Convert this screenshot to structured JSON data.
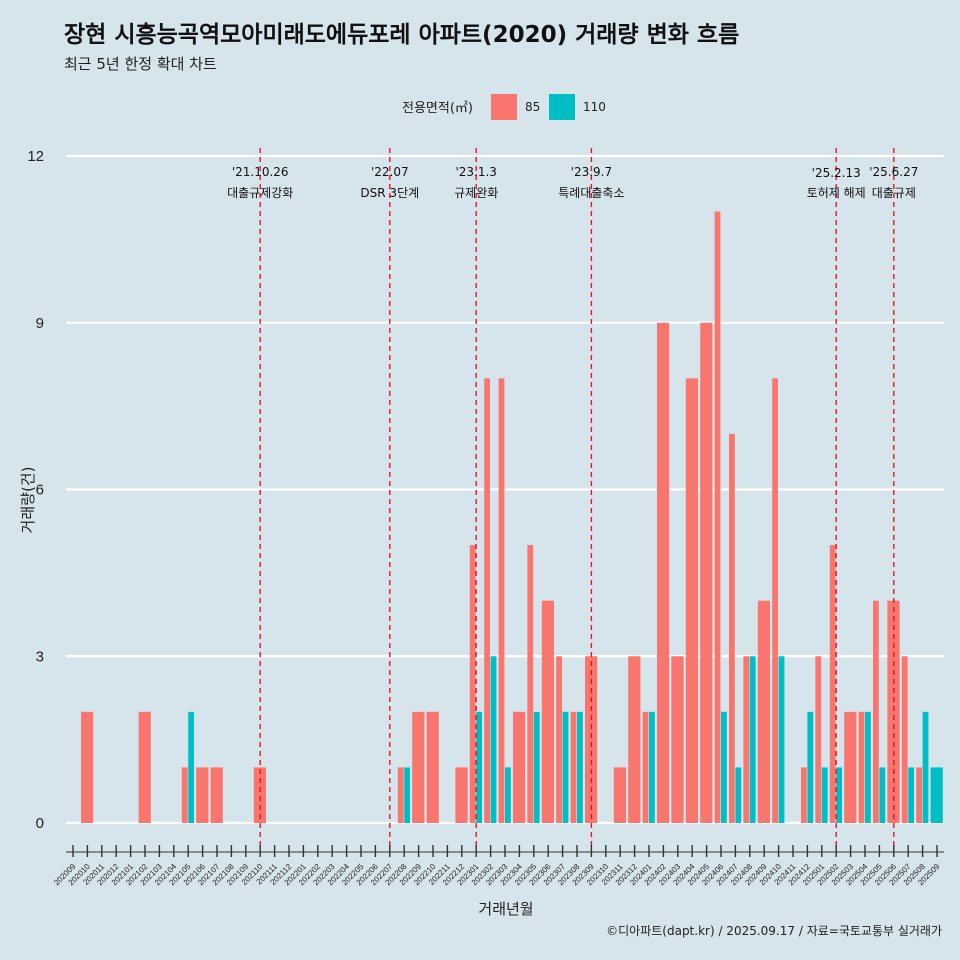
{
  "chart_data": {
    "type": "bar",
    "title": "장현 시흥능곡역모아미래도에듀포레 아파트(2020) 거래량 변화 흐름",
    "subtitle": "최근 5년 한정 확대 차트",
    "xlabel": "거래년월",
    "ylabel": "거래량(건)",
    "ylim": [
      0,
      12
    ],
    "yticks": [
      0,
      3,
      6,
      9,
      12
    ],
    "legend_title": "전용면적(㎡)",
    "legend_position": "top",
    "caption": "©디아파트(dapt.kr) / 2025.09.17 / 자료=국토교통부 실거래가",
    "categories": [
      "202009",
      "202010",
      "202011",
      "202012",
      "202101",
      "202102",
      "202103",
      "202104",
      "202105",
      "202106",
      "202107",
      "202108",
      "202109",
      "202110",
      "202111",
      "202112",
      "202201",
      "202202",
      "202203",
      "202204",
      "202205",
      "202206",
      "202207",
      "202208",
      "202209",
      "202210",
      "202211",
      "202212",
      "202301",
      "202302",
      "202303",
      "202304",
      "202305",
      "202306",
      "202307",
      "202308",
      "202309",
      "202310",
      "202311",
      "202312",
      "202401",
      "202402",
      "202403",
      "202404",
      "202405",
      "202406",
      "202407",
      "202408",
      "202409",
      "202410",
      "202411",
      "202412",
      "202501",
      "202502",
      "202503",
      "202504",
      "202505",
      "202506",
      "202507",
      "202508",
      "202509"
    ],
    "series": [
      {
        "name": "85",
        "color": "#f8766d",
        "values": [
          0,
          2,
          0,
          0,
          0,
          2,
          0,
          0,
          1,
          1,
          1,
          0,
          0,
          1,
          0,
          0,
          0,
          0,
          0,
          0,
          0,
          0,
          0,
          1,
          2,
          2,
          0,
          1,
          5,
          8,
          8,
          2,
          5,
          4,
          3,
          2,
          3,
          0,
          1,
          3,
          2,
          9,
          3,
          8,
          9,
          11,
          7,
          3,
          4,
          8,
          0,
          1,
          3,
          5,
          2,
          2,
          4,
          4,
          3,
          1,
          0
        ]
      },
      {
        "name": "110",
        "color": "#00bfc4",
        "values": [
          0,
          0,
          0,
          0,
          0,
          0,
          0,
          0,
          2,
          0,
          0,
          0,
          0,
          0,
          0,
          0,
          0,
          0,
          0,
          0,
          0,
          0,
          0,
          1,
          0,
          0,
          0,
          0,
          2,
          3,
          1,
          0,
          2,
          0,
          2,
          2,
          0,
          0,
          0,
          0,
          2,
          0,
          0,
          0,
          0,
          2,
          1,
          3,
          0,
          3,
          0,
          2,
          1,
          1,
          0,
          2,
          1,
          0,
          1,
          2,
          1
        ]
      }
    ],
    "events": [
      {
        "date": "'21.10.26",
        "label": "대출규제강화",
        "category": "202110"
      },
      {
        "date": "'22.07",
        "label": "DSR 3단계",
        "category": "202207"
      },
      {
        "date": "'23.1.3",
        "label": "규제완화",
        "category": "202301"
      },
      {
        "date": "'23.9.7",
        "label": "특례대출축소",
        "category": "202309"
      },
      {
        "date": "'25.2.13",
        "label": "토허제 해제",
        "category": "202502"
      },
      {
        "date": "'25.6.27",
        "label": "대출규제",
        "category": "202506"
      }
    ]
  }
}
